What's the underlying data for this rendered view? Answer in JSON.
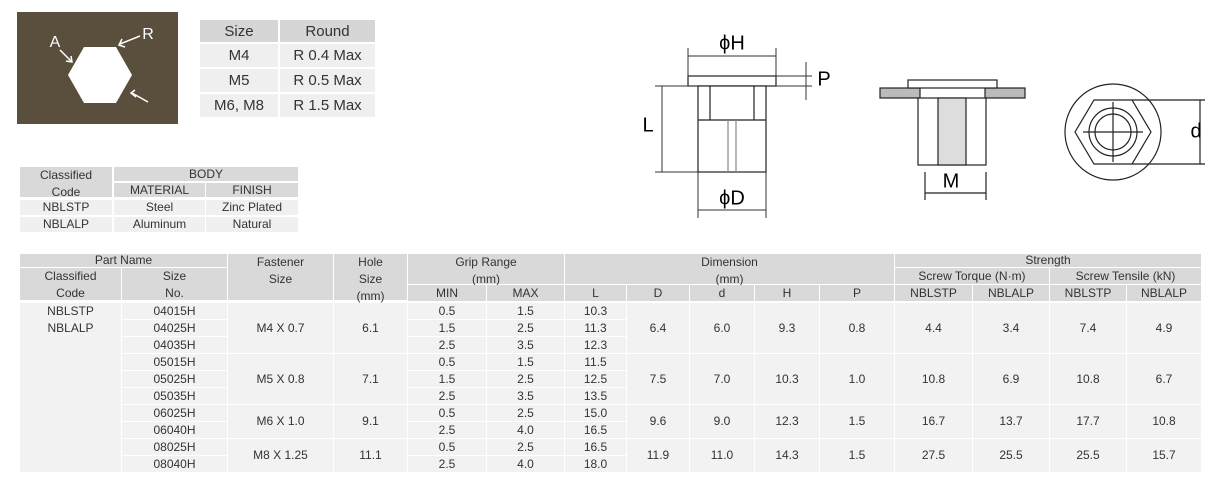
{
  "corner_figure": {
    "labels": [
      "A",
      "R"
    ]
  },
  "round_table": {
    "columns": [
      "Size",
      "Round"
    ],
    "rows": [
      [
        "M4",
        "R 0.4 Max"
      ],
      [
        "M5",
        "R 0.5 Max"
      ],
      [
        "M6, M8",
        "R 1.5 Max"
      ]
    ]
  },
  "material_table": {
    "code_header": [
      "Classified",
      "Code"
    ],
    "body_header": "BODY",
    "columns": [
      "MATERIAL",
      "FINISH"
    ],
    "rows": [
      [
        "NBLSTP",
        "Steel",
        "Zinc Plated"
      ],
      [
        "NBLALP",
        "Aluminum",
        "Natural"
      ]
    ]
  },
  "drawing_labels": {
    "phi_h": "ϕH",
    "p": "P",
    "l": "L",
    "phi_d": "ϕD",
    "m": "M",
    "d": "d"
  },
  "spec_table": {
    "header": {
      "part_name": "Part Name",
      "classified_code": [
        "Classified",
        "Code"
      ],
      "size_no": [
        "Size",
        "No."
      ],
      "fastener_size": [
        "Fastener",
        "Size"
      ],
      "hole_size": [
        "Hole",
        "Size",
        "(mm)"
      ],
      "grip_range": [
        "Grip Range",
        "(mm)"
      ],
      "grip_columns": [
        "MIN",
        "MAX"
      ],
      "dimension": [
        "Dimension",
        "(mm)"
      ],
      "dimension_columns": [
        "L",
        "D",
        "d",
        "H",
        "P"
      ],
      "strength": "Strength",
      "screw_torque": "Screw Torque (N·m)",
      "screw_tensile": "Screw Tensile (kN)",
      "strength_columns": [
        "NBLSTP",
        "NBLALP",
        "NBLSTP",
        "NBLALP"
      ]
    },
    "classified_codes": [
      "NBLSTP",
      "NBLALP"
    ],
    "groups": [
      {
        "fastener_size": "M4 X 0.7",
        "hole_size": "6.1",
        "D": "6.4",
        "d": "6.0",
        "H": "9.3",
        "P": "0.8",
        "torque": [
          "4.4",
          "3.4"
        ],
        "tensile": [
          "7.4",
          "4.9"
        ],
        "rows": [
          {
            "size_no": "04015H",
            "min": "0.5",
            "max": "1.5",
            "L": "10.3"
          },
          {
            "size_no": "04025H",
            "min": "1.5",
            "max": "2.5",
            "L": "11.3"
          },
          {
            "size_no": "04035H",
            "min": "2.5",
            "max": "3.5",
            "L": "12.3"
          }
        ]
      },
      {
        "fastener_size": "M5 X 0.8",
        "hole_size": "7.1",
        "D": "7.5",
        "d": "7.0",
        "H": "10.3",
        "P": "1.0",
        "torque": [
          "10.8",
          "6.9"
        ],
        "tensile": [
          "10.8",
          "6.7"
        ],
        "rows": [
          {
            "size_no": "05015H",
            "min": "0.5",
            "max": "1.5",
            "L": "11.5"
          },
          {
            "size_no": "05025H",
            "min": "1.5",
            "max": "2.5",
            "L": "12.5"
          },
          {
            "size_no": "05035H",
            "min": "2.5",
            "max": "3.5",
            "L": "13.5"
          }
        ]
      },
      {
        "fastener_size": "M6 X 1.0",
        "hole_size": "9.1",
        "D": "9.6",
        "d": "9.0",
        "H": "12.3",
        "P": "1.5",
        "torque": [
          "16.7",
          "13.7"
        ],
        "tensile": [
          "17.7",
          "10.8"
        ],
        "rows": [
          {
            "size_no": "06025H",
            "min": "0.5",
            "max": "2.5",
            "L": "15.0"
          },
          {
            "size_no": "06040H",
            "min": "2.5",
            "max": "4.0",
            "L": "16.5"
          }
        ]
      },
      {
        "fastener_size": "M8 X 1.25",
        "hole_size": "11.1",
        "D": "11.9",
        "d": "11.0",
        "H": "14.3",
        "P": "1.5",
        "torque": [
          "27.5",
          "25.5"
        ],
        "tensile": [
          "25.5",
          "15.7"
        ],
        "rows": [
          {
            "size_no": "08025H",
            "min": "0.5",
            "max": "2.5",
            "L": "16.5"
          },
          {
            "size_no": "08040H",
            "min": "2.5",
            "max": "4.0",
            "L": "18.0"
          }
        ]
      }
    ]
  }
}
